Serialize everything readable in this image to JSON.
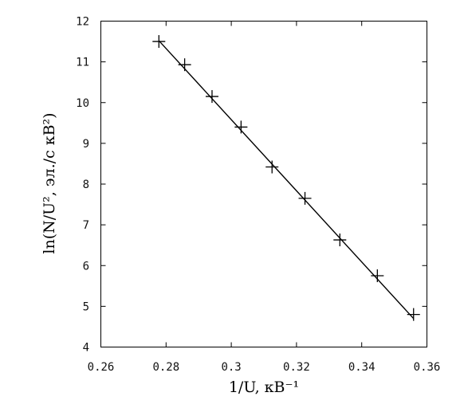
{
  "chart_data": {
    "type": "scatter",
    "title": "",
    "xlabel": "1/U, кВ⁻¹",
    "ylabel": "ln(N/U², эл./с кВ²)",
    "xlim": [
      0.26,
      0.36
    ],
    "ylim": [
      4,
      12
    ],
    "grid": false,
    "legend": "none",
    "x_ticks": [
      0.26,
      0.28,
      0.3,
      0.32,
      0.34,
      0.36
    ],
    "x_tick_labels": [
      "0.26",
      "0.28",
      "0.3",
      "0.32",
      "0.34",
      "0.36"
    ],
    "y_ticks": [
      4,
      5,
      6,
      7,
      8,
      9,
      10,
      11,
      12
    ],
    "y_tick_labels": [
      "4",
      "5",
      "6",
      "7",
      "8",
      "9",
      "10",
      "11",
      "12"
    ],
    "series": [
      {
        "marker": "plus",
        "x": [
          0.2778,
          0.2857,
          0.2941,
          0.303,
          0.3125,
          0.3226,
          0.3333,
          0.3448,
          0.3559
        ],
        "y": [
          11.5,
          10.93,
          10.15,
          9.4,
          8.42,
          7.65,
          6.63,
          5.75,
          4.8
        ]
      }
    ],
    "fit_line": {
      "x": [
        0.2778,
        0.3559
      ],
      "y": [
        11.52,
        4.7
      ]
    },
    "colors": {
      "marks": "#000000"
    }
  }
}
